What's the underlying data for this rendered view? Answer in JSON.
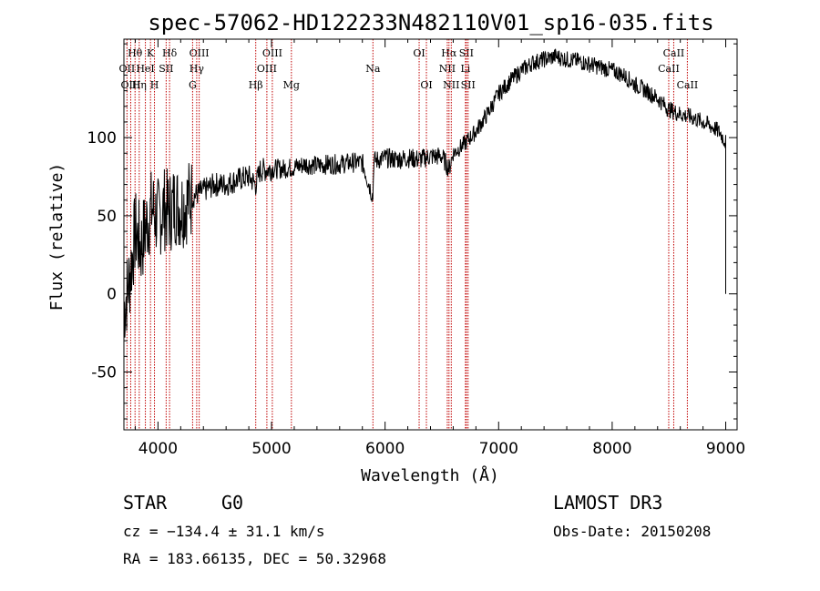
{
  "chart_data": {
    "type": "line",
    "title": "spec-57062-HD122233N482110V01_sp16-035.fits",
    "xlabel": "Wavelength (Å)",
    "ylabel": "Flux (relative)",
    "xlim": [
      3700,
      9100
    ],
    "ylim": [
      -87,
      163
    ],
    "xticks": [
      4000,
      5000,
      6000,
      7000,
      8000,
      9000
    ],
    "yticks": [
      -50,
      0,
      50,
      100
    ],
    "grid": false,
    "series": [
      {
        "name": "spectrum",
        "x": [
          3700,
          3750,
          3800,
          3850,
          3900,
          3950,
          4000,
          4050,
          4100,
          4150,
          4200,
          4300,
          4400,
          4500,
          4600,
          4700,
          4800,
          4861,
          4900,
          5000,
          5100,
          5200,
          5300,
          5400,
          5500,
          5600,
          5700,
          5800,
          5893,
          5900,
          6000,
          6100,
          6200,
          6300,
          6400,
          6500,
          6563,
          6600,
          6700,
          6800,
          6900,
          7000,
          7100,
          7200,
          7300,
          7400,
          7500,
          7600,
          7700,
          7800,
          7900,
          8000,
          8100,
          8200,
          8300,
          8400,
          8500,
          8600,
          8700,
          8800,
          8900,
          8950,
          9000
        ],
        "y": [
          -10,
          10,
          40,
          30,
          45,
          55,
          48,
          55,
          52,
          58,
          55,
          62,
          66,
          70,
          70,
          73,
          75,
          70,
          79,
          80,
          80,
          81,
          83,
          82,
          83,
          83,
          84,
          84,
          62,
          85,
          87,
          86,
          87,
          86,
          88,
          88,
          80,
          90,
          96,
          104,
          115,
          128,
          136,
          143,
          148,
          150,
          152,
          150,
          149,
          147,
          145,
          143,
          140,
          134,
          130,
          125,
          118,
          115,
          113,
          110,
          106,
          103,
          97
        ]
      }
    ],
    "lines": [
      {
        "name": "Hθ",
        "x": 3798,
        "row": 1
      },
      {
        "name": "OII",
        "x": 3727,
        "row": 2
      },
      {
        "name": "OIII",
        "x": 3760,
        "row": 3
      },
      {
        "name": "K",
        "x": 3934,
        "row": 1
      },
      {
        "name": "HeI",
        "x": 3889,
        "row": 2
      },
      {
        "name": "Hη",
        "x": 3835,
        "row": 3
      },
      {
        "name": "H",
        "x": 3969,
        "row": 3
      },
      {
        "name": "Hδ",
        "x": 4102,
        "row": 1
      },
      {
        "name": "SII",
        "x": 4072,
        "row": 2
      },
      {
        "name": "OIII",
        "x": 4363,
        "row": 1
      },
      {
        "name": "Hγ",
        "x": 4341,
        "row": 2
      },
      {
        "name": "G",
        "x": 4305,
        "row": 3
      },
      {
        "name": "Hβ",
        "x": 4861,
        "row": 3
      },
      {
        "name": "OIII",
        "x": 5007,
        "row": 1
      },
      {
        "name": "OIII",
        "x": 4959,
        "row": 2
      },
      {
        "name": "Mg",
        "x": 5175,
        "row": 3
      },
      {
        "name": "Na",
        "x": 5893,
        "row": 2
      },
      {
        "name": "OI",
        "x": 6300,
        "row": 1
      },
      {
        "name": "OI",
        "x": 6364,
        "row": 3
      },
      {
        "name": "Hα",
        "x": 6563,
        "row": 1
      },
      {
        "name": "NII",
        "x": 6548,
        "row": 2
      },
      {
        "name": "NII",
        "x": 6583,
        "row": 3
      },
      {
        "name": "SII",
        "x": 6716,
        "row": 1
      },
      {
        "name": "Li",
        "x": 6708,
        "row": 2
      },
      {
        "name": "SII",
        "x": 6731,
        "row": 3
      },
      {
        "name": "CaII",
        "x": 8542,
        "row": 1
      },
      {
        "name": "CaII",
        "x": 8498,
        "row": 2
      },
      {
        "name": "CaII",
        "x": 8662,
        "row": 3
      }
    ],
    "line_color": "#c00000"
  },
  "info": {
    "class": "STAR",
    "subclass": "G0",
    "survey": "LAMOST DR3",
    "cz": "cz = −134.4 ± 31.1 km/s",
    "obsdate": "Obs-Date: 20150208",
    "radec": "RA = 183.66135, DEC =  50.32968"
  }
}
